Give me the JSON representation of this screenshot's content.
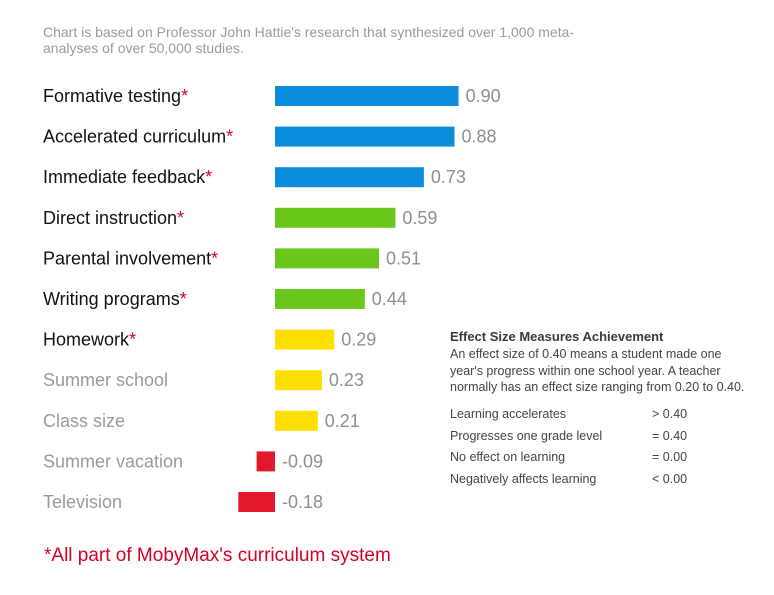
{
  "subtitle": "Chart is based on Professor John Hattie's research that synthesized over 1,000 meta-analyses of over 50,000 studies.",
  "chart_data": {
    "type": "bar",
    "orientation": "horizontal",
    "categories": [
      "Formative testing",
      "Accelerated curriculum",
      "Immediate feedback",
      "Direct instruction",
      "Parental involvement",
      "Writing programs",
      "Homework",
      "Summer school",
      "Class size",
      "Summer vacation",
      "Television"
    ],
    "values": [
      0.9,
      0.88,
      0.73,
      0.59,
      0.51,
      0.44,
      0.29,
      0.23,
      0.21,
      -0.09,
      -0.18
    ],
    "value_labels": [
      "0.90",
      "0.88",
      "0.73",
      "0.59",
      "0.51",
      "0.44",
      "0.29",
      "0.23",
      "0.21",
      "-0.09",
      "-0.18"
    ],
    "starred": [
      true,
      true,
      true,
      true,
      true,
      true,
      true,
      false,
      false,
      false,
      false
    ],
    "star_symbol": "*",
    "bar_colors": [
      "#0a8ddb",
      "#0a8ddb",
      "#0a8ddb",
      "#6ac61b",
      "#6ac61b",
      "#6ac61b",
      "#ffdf00",
      "#ffdf00",
      "#ffdf00",
      "#e2182c",
      "#e2182c"
    ],
    "label_colors": {
      "starred": "#111111",
      "unstarred": "#9a9a9a",
      "star": "#d8002a"
    },
    "xlim": [
      -0.2,
      0.9
    ],
    "grid": false,
    "axis_shown": false
  },
  "legend": {
    "title": "Effect Size Measures Achievement",
    "description": "An effect size of 0.40 means a student made one year's progress within one school year. A teacher normally has an effect size ranging from 0.20 to 0.40.",
    "rows": [
      {
        "label": "Learning accelerates",
        "value": "> 0.40"
      },
      {
        "label": "Progresses one grade level",
        "value": "= 0.40"
      },
      {
        "label": "No effect on learning",
        "value": "= 0.00"
      },
      {
        "label": "Negatively affects learning",
        "value": "< 0.00"
      }
    ]
  },
  "footnote": "*All part of MobyMax's curriculum system"
}
